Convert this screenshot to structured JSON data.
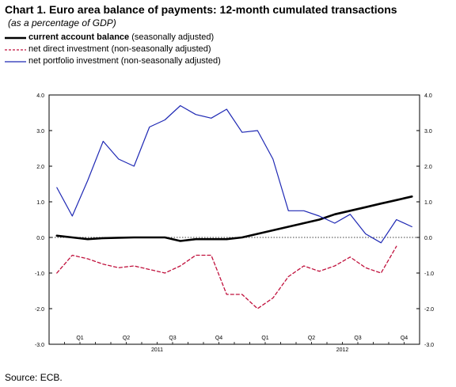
{
  "header": {
    "title": "Chart 1. Euro area balance of payments: 12-month cumulated transactions",
    "subtitle": "(as a percentage of GDP)"
  },
  "legend": [
    {
      "name": "current account balance",
      "note": "(seasonally adjusted)"
    },
    {
      "name": "net direct investment",
      "note": "(non-seasonally adjusted)"
    },
    {
      "name": "net portfolio investment",
      "note": "(non-seasonally adjusted)"
    }
  ],
  "footer": {
    "source": "Source: ECB."
  },
  "colors": {
    "current_account": "#000000",
    "direct_investment": "#c0103c",
    "portfolio": "#1e28b4"
  },
  "chart_data": {
    "type": "line",
    "ylim": [
      -3.0,
      4.0
    ],
    "yticks": [
      "4.0",
      "3.0",
      "2.0",
      "1.0",
      "0.0",
      "-1.0",
      "-2.0",
      "-3.0"
    ],
    "quarter_labels": [
      "Q1",
      "Q2",
      "Q3",
      "Q4",
      "Q1",
      "Q2",
      "Q3",
      "Q4"
    ],
    "year_labels": [
      "2011",
      "2012"
    ],
    "grid": false,
    "zero_line": "dotted",
    "series": [
      {
        "name": "current account balance",
        "values": [
          0.05,
          0.0,
          -0.05,
          -0.02,
          -0.01,
          0.0,
          0.0,
          0.0,
          -0.1,
          -0.05,
          -0.05,
          -0.05,
          0.0,
          0.1,
          0.2,
          0.3,
          0.4,
          0.5,
          0.65,
          0.75,
          0.85,
          0.95,
          1.05,
          1.15
        ]
      },
      {
        "name": "net direct investment",
        "values": [
          -1.0,
          -0.5,
          -0.6,
          -0.75,
          -0.85,
          -0.8,
          -0.9,
          -1.0,
          -0.8,
          -0.5,
          -0.5,
          -1.6,
          -1.6,
          -2.0,
          -1.7,
          -1.1,
          -0.8,
          -0.95,
          -0.8,
          -0.55,
          -0.85,
          -1.0,
          -0.25,
          null
        ]
      },
      {
        "name": "net portfolio investment",
        "values": [
          1.4,
          0.6,
          1.6,
          2.7,
          2.2,
          2.0,
          3.1,
          3.3,
          3.7,
          3.45,
          3.35,
          3.6,
          2.95,
          3.0,
          2.2,
          0.75,
          0.75,
          0.6,
          0.4,
          0.65,
          0.1,
          -0.15,
          0.5,
          0.3
        ]
      }
    ]
  }
}
